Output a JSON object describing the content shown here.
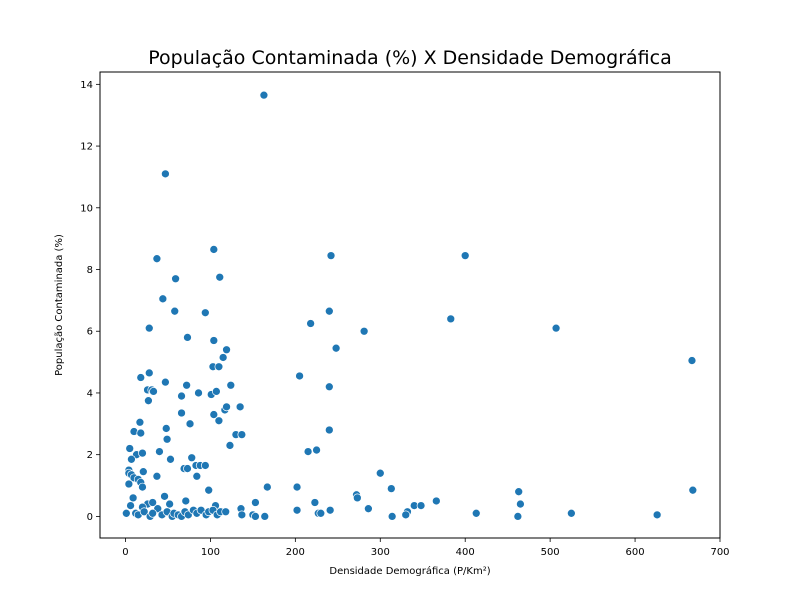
{
  "chart_data": {
    "type": "scatter",
    "title": "População Contaminada (%) X Densidade Demográfica",
    "xlabel": "Densidade Demográfica (P/Km²)",
    "ylabel": "População Contaminada (%)",
    "xlim": [
      -30,
      700
    ],
    "ylim": [
      -0.7,
      14.4
    ],
    "xticks": [
      0,
      100,
      200,
      300,
      400,
      500,
      600,
      700
    ],
    "yticks": [
      0,
      2,
      4,
      6,
      8,
      10,
      12,
      14
    ],
    "grid": false,
    "marker_color": "#1f77b4",
    "points": [
      [
        163,
        13.65
      ],
      [
        47,
        11.1
      ],
      [
        104,
        8.65
      ],
      [
        37,
        8.35
      ],
      [
        242,
        8.45
      ],
      [
        400,
        8.45
      ],
      [
        59,
        7.7
      ],
      [
        111,
        7.75
      ],
      [
        44,
        7.05
      ],
      [
        58,
        6.65
      ],
      [
        94,
        6.6
      ],
      [
        240,
        6.65
      ],
      [
        218,
        6.25
      ],
      [
        383,
        6.4
      ],
      [
        28,
        6.1
      ],
      [
        281,
        6.0
      ],
      [
        507,
        6.1
      ],
      [
        73,
        5.8
      ],
      [
        104,
        5.7
      ],
      [
        248,
        5.45
      ],
      [
        119,
        5.4
      ],
      [
        115,
        5.15
      ],
      [
        103,
        4.85
      ],
      [
        110,
        4.85
      ],
      [
        205,
        4.55
      ],
      [
        18,
        4.5
      ],
      [
        28,
        4.65
      ],
      [
        124,
        4.25
      ],
      [
        47,
        4.35
      ],
      [
        72,
        4.25
      ],
      [
        240,
        4.2
      ],
      [
        26,
        4.1
      ],
      [
        31,
        4.1
      ],
      [
        33,
        4.05
      ],
      [
        86,
        4.0
      ],
      [
        101,
        3.95
      ],
      [
        107,
        4.05
      ],
      [
        66,
        3.9
      ],
      [
        27,
        3.75
      ],
      [
        117,
        3.45
      ],
      [
        119,
        3.55
      ],
      [
        135,
        3.55
      ],
      [
        66,
        3.35
      ],
      [
        104,
        3.3
      ],
      [
        110,
        3.1
      ],
      [
        17,
        3.05
      ],
      [
        76,
        3.0
      ],
      [
        48,
        2.85
      ],
      [
        240,
        2.8
      ],
      [
        10,
        2.75
      ],
      [
        18,
        2.7
      ],
      [
        130,
        2.65
      ],
      [
        137,
        2.65
      ],
      [
        49,
        2.5
      ],
      [
        123,
        2.3
      ],
      [
        5,
        2.2
      ],
      [
        13,
        2.0
      ],
      [
        20,
        2.05
      ],
      [
        40,
        2.1
      ],
      [
        215,
        2.1
      ],
      [
        225,
        2.15
      ],
      [
        78,
        1.9
      ],
      [
        7,
        1.85
      ],
      [
        53,
        1.85
      ],
      [
        83,
        1.65
      ],
      [
        88,
        1.65
      ],
      [
        94,
        1.65
      ],
      [
        69,
        1.55
      ],
      [
        4,
        1.5
      ],
      [
        73,
        1.55
      ],
      [
        21,
        1.45
      ],
      [
        4,
        1.4
      ],
      [
        7,
        1.35
      ],
      [
        37,
        1.3
      ],
      [
        84,
        1.3
      ],
      [
        10,
        1.25
      ],
      [
        15,
        1.2
      ],
      [
        4,
        1.05
      ],
      [
        18,
        1.1
      ],
      [
        20,
        0.95
      ],
      [
        98,
        0.85
      ],
      [
        167,
        0.95
      ],
      [
        202,
        0.95
      ],
      [
        300,
        1.4
      ],
      [
        313,
        0.9
      ],
      [
        667,
        5.05
      ],
      [
        668,
        0.85
      ],
      [
        463,
        0.8
      ],
      [
        272,
        0.7
      ],
      [
        273,
        0.6
      ],
      [
        366,
        0.5
      ],
      [
        465,
        0.4
      ],
      [
        9,
        0.6
      ],
      [
        46,
        0.65
      ],
      [
        71,
        0.5
      ],
      [
        153,
        0.45
      ],
      [
        223,
        0.45
      ],
      [
        106,
        0.35
      ],
      [
        26,
        0.4
      ],
      [
        32,
        0.45
      ],
      [
        52,
        0.4
      ],
      [
        6,
        0.35
      ],
      [
        20,
        0.3
      ],
      [
        38,
        0.25
      ],
      [
        136,
        0.25
      ],
      [
        286,
        0.25
      ],
      [
        340,
        0.35
      ],
      [
        348,
        0.35
      ],
      [
        332,
        0.15
      ],
      [
        413,
        0.1
      ],
      [
        462,
        0.0
      ],
      [
        525,
        0.1
      ],
      [
        626,
        0.05
      ],
      [
        1,
        0.1
      ],
      [
        12,
        0.1
      ],
      [
        15,
        0.05
      ],
      [
        22,
        0.15
      ],
      [
        29,
        0.0
      ],
      [
        32,
        0.1
      ],
      [
        43,
        0.05
      ],
      [
        49,
        0.15
      ],
      [
        55,
        0.0
      ],
      [
        57,
        0.1
      ],
      [
        62,
        0.05
      ],
      [
        66,
        0.0
      ],
      [
        70,
        0.15
      ],
      [
        74,
        0.05
      ],
      [
        80,
        0.2
      ],
      [
        84,
        0.1
      ],
      [
        89,
        0.2
      ],
      [
        95,
        0.05
      ],
      [
        98,
        0.15
      ],
      [
        103,
        0.2
      ],
      [
        108,
        0.05
      ],
      [
        112,
        0.15
      ],
      [
        118,
        0.15
      ],
      [
        137,
        0.05
      ],
      [
        150,
        0.05
      ],
      [
        153,
        0.0
      ],
      [
        164,
        0.0
      ],
      [
        202,
        0.2
      ],
      [
        227,
        0.1
      ],
      [
        230,
        0.1
      ],
      [
        241,
        0.2
      ],
      [
        314,
        0.0
      ],
      [
        330,
        0.05
      ]
    ]
  }
}
